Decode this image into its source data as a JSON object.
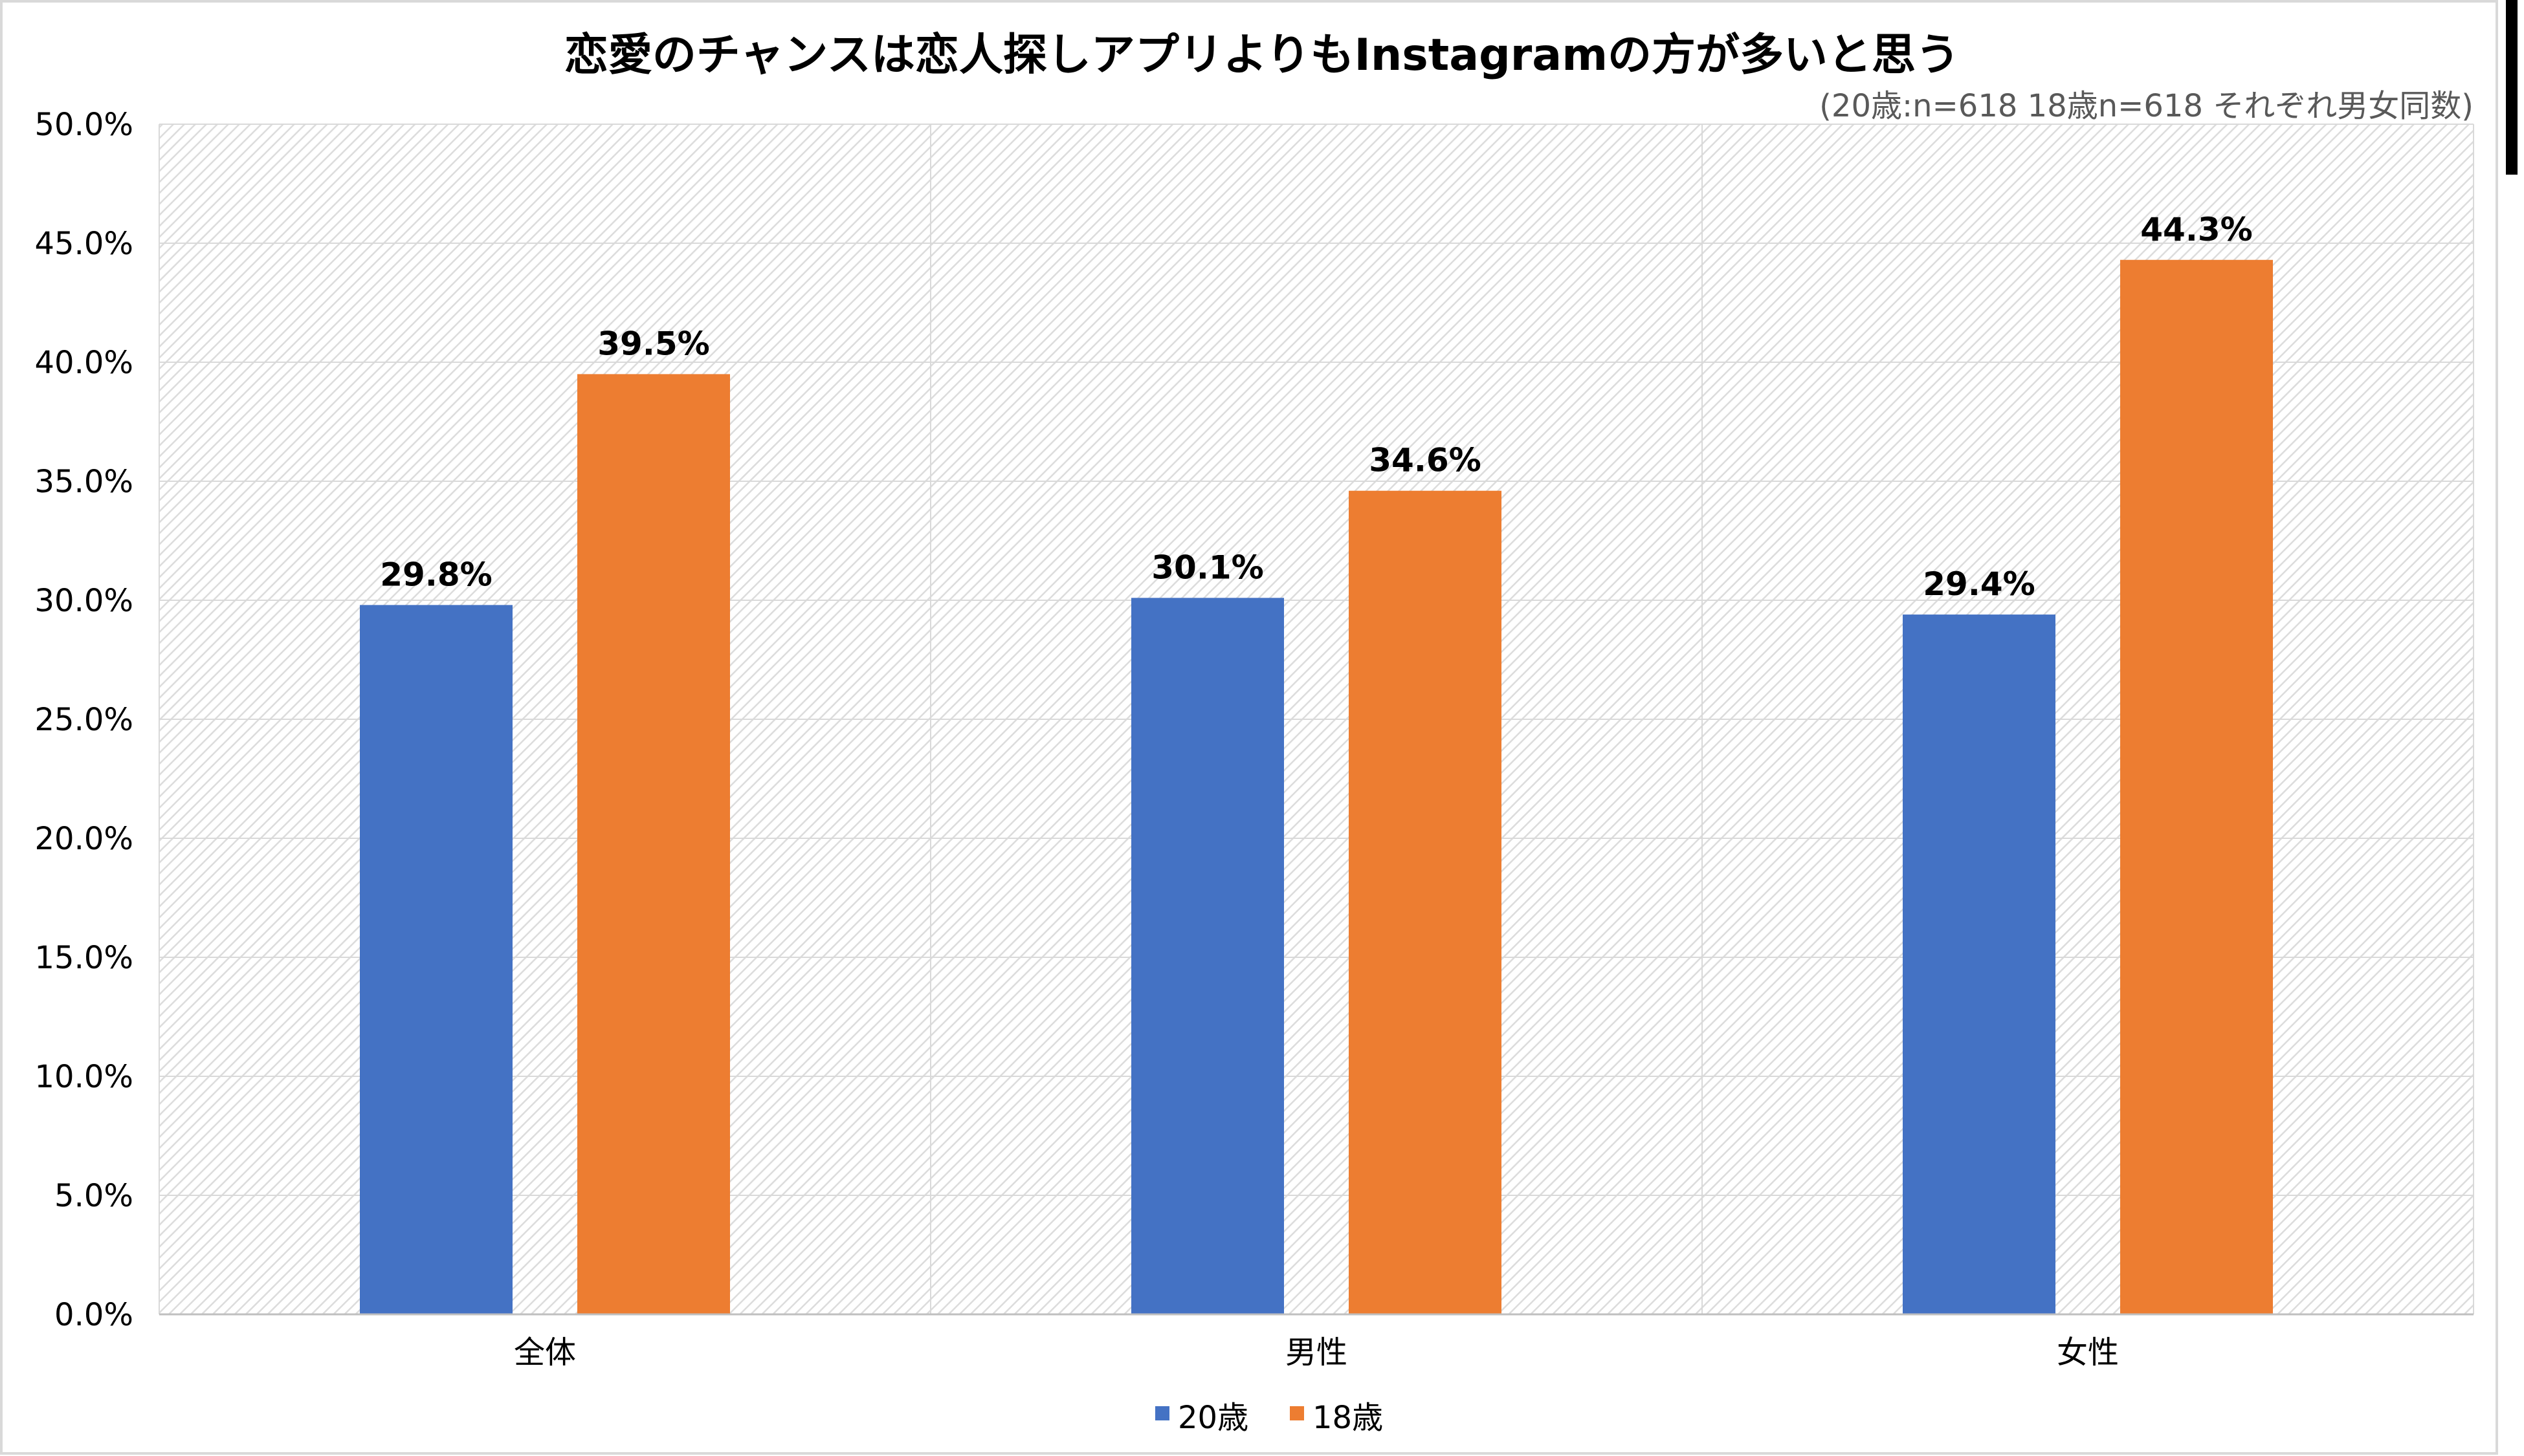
{
  "chart_data": {
    "type": "bar",
    "title": "恋愛のチャンスは恋人探しアプリよりもInstagramの方が多いと思う",
    "subtitle": "(20歳:n=618 18歳n=618 それぞれ男女同数)",
    "categories": [
      "全体",
      "男性",
      "女性"
    ],
    "series": [
      {
        "name": "20歳",
        "values": [
          29.8,
          30.1,
          29.4
        ],
        "labels": [
          "29.8%",
          "30.1%",
          "29.4%"
        ]
      },
      {
        "name": "18歳",
        "values": [
          39.5,
          34.6,
          44.3
        ],
        "labels": [
          "39.5%",
          "34.6%",
          "44.3%"
        ]
      }
    ],
    "yticks": [
      "0.0%",
      "5.0%",
      "10.0%",
      "15.0%",
      "20.0%",
      "25.0%",
      "30.0%",
      "35.0%",
      "40.0%",
      "45.0%",
      "50.0%"
    ],
    "ylim": [
      0,
      50
    ],
    "xlabel": "",
    "ylabel": "",
    "grid": true,
    "legend": "bottom"
  },
  "colors": {
    "series_20": "#4472C4",
    "series_18": "#ED7D31",
    "gridline": "#d9d9d9",
    "plot_hatch": "#dcdcdc"
  }
}
